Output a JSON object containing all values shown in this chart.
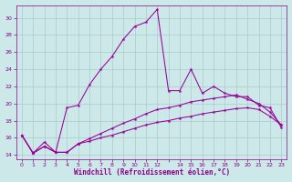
{
  "x_values": [
    0,
    1,
    2,
    3,
    4,
    5,
    6,
    7,
    8,
    9,
    10,
    11,
    12,
    13,
    14,
    15,
    16,
    17,
    18,
    19,
    20,
    21,
    22,
    23
  ],
  "line1_y": [
    16.3,
    14.2,
    15.0,
    14.3,
    14.3,
    15.3,
    15.6,
    16.0,
    16.3,
    16.7,
    17.1,
    17.5,
    17.8,
    18.0,
    18.3,
    18.5,
    18.8,
    19.0,
    19.2,
    19.4,
    19.5,
    19.3,
    18.5,
    17.5
  ],
  "line2_y": [
    16.3,
    14.2,
    15.0,
    14.3,
    14.3,
    15.3,
    15.9,
    16.5,
    17.1,
    17.7,
    18.2,
    18.8,
    19.3,
    19.5,
    19.8,
    20.2,
    20.4,
    20.6,
    20.8,
    21.0,
    20.5,
    20.0,
    19.0,
    17.5
  ],
  "line3_y": [
    16.3,
    14.2,
    15.5,
    14.3,
    19.5,
    19.8,
    22.2,
    24.0,
    25.5,
    27.5,
    29.0,
    29.5,
    31.0,
    21.5,
    21.5,
    24.0,
    21.2,
    22.0,
    21.2,
    20.8,
    20.8,
    19.8,
    19.5,
    17.2
  ],
  "xlim": [
    -0.5,
    23.5
  ],
  "ylim": [
    13.5,
    31.5
  ],
  "yticks": [
    14,
    16,
    18,
    20,
    22,
    24,
    26,
    28,
    30
  ],
  "xtick_labels": [
    "0",
    "1",
    "2",
    "3",
    "4",
    "5",
    "6",
    "7",
    "8",
    "9",
    "10",
    "11",
    "12",
    "",
    "14",
    "15",
    "16",
    "17",
    "18",
    "19",
    "20",
    "21",
    "22",
    "23"
  ],
  "xtick_positions": [
    0,
    1,
    2,
    3,
    4,
    5,
    6,
    7,
    8,
    9,
    10,
    11,
    12,
    13,
    14,
    15,
    16,
    17,
    18,
    19,
    20,
    21,
    22,
    23
  ],
  "xlabel": "Windchill (Refroidissement éolien,°C)",
  "line_color": "#990099",
  "bg_color": "#cce8e8",
  "grid_color": "#aacccc",
  "text_color": "#880088"
}
